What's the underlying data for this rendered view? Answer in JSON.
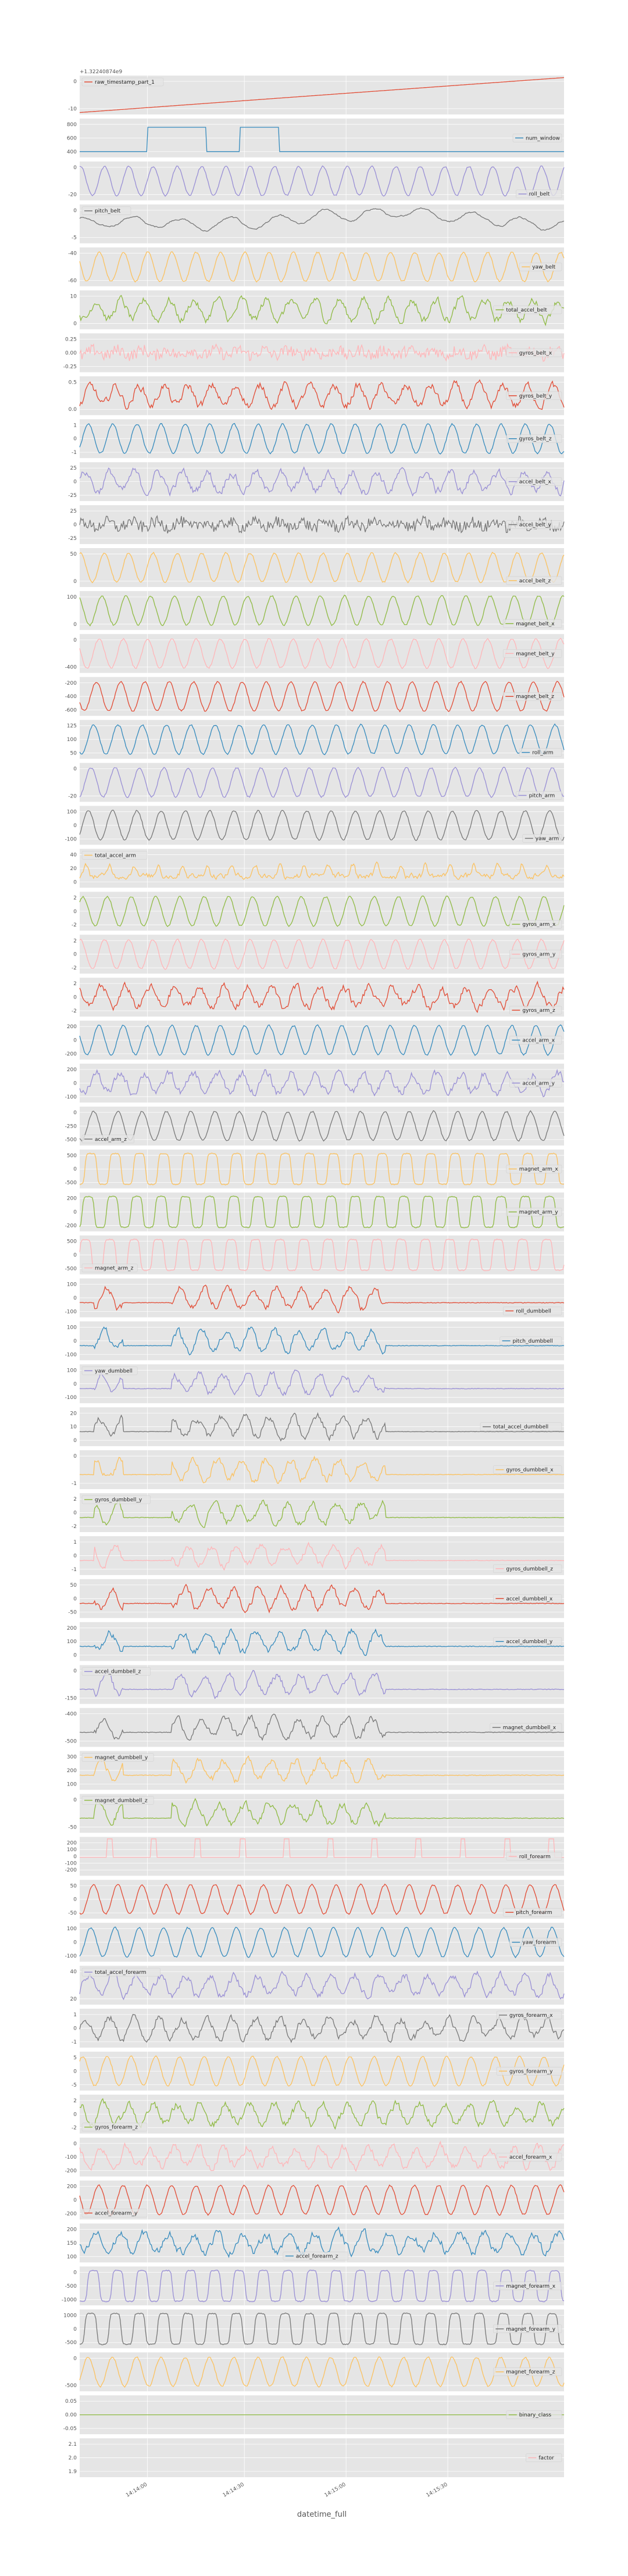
{
  "chart_data": {
    "type": "line",
    "xlabel": "datetime_full",
    "x_ticks": [
      "14:14:00",
      "14:14:30",
      "14:15:00",
      "14:15:30"
    ],
    "grid": true,
    "legend_placement": "per-panel",
    "colors": [
      "#E24A33",
      "#348ABD",
      "#988ED5",
      "#777777",
      "#FBC15E",
      "#8EBA42",
      "#FFB5B8"
    ],
    "panels": [
      {
        "name": "raw_timestamp_part_1",
        "offset_text": "+1.32240874e9",
        "yticks": [
          "0",
          "-10"
        ],
        "kind": "ramp",
        "legend_pos": "upper-left",
        "color": "#E24A33"
      },
      {
        "name": "num_window",
        "yticks": [
          "800",
          "600",
          "400"
        ],
        "kind": "step",
        "legend_pos": "right",
        "color": "#348ABD"
      },
      {
        "name": "roll_belt",
        "yticks": [
          "0",
          "-20"
        ],
        "kind": "wave",
        "period": 20,
        "legend_pos": "lower-right",
        "color": "#988ED5"
      },
      {
        "name": "pitch_belt",
        "yticks": [
          "0",
          "-5"
        ],
        "kind": "drift",
        "legend_pos": "upper-left",
        "color": "#777777"
      },
      {
        "name": "yaw_belt",
        "yticks": [
          "-40",
          "-60"
        ],
        "kind": "wave",
        "period": 20,
        "legend_pos": "right",
        "color": "#FBC15E"
      },
      {
        "name": "total_accel_belt",
        "yticks": [
          "10",
          "0"
        ],
        "kind": "noisy",
        "legend_pos": "right",
        "color": "#8EBA42"
      },
      {
        "name": "gyros_belt_x",
        "yticks": [
          "0.25",
          "0.00",
          "-0.25"
        ],
        "kind": "noise",
        "legend_pos": "right",
        "color": "#FFB5B8"
      },
      {
        "name": "gyros_belt_y",
        "yticks": [
          "0.5",
          "0.0"
        ],
        "kind": "noisy",
        "legend_pos": "right",
        "color": "#E24A33"
      },
      {
        "name": "gyros_belt_z",
        "yticks": [
          "1",
          "0",
          "-1"
        ],
        "kind": "wave",
        "period": 20,
        "legend_pos": "right",
        "color": "#348ABD"
      },
      {
        "name": "accel_belt_x",
        "yticks": [
          "25",
          "0",
          "-25"
        ],
        "kind": "noisy",
        "legend_pos": "right",
        "color": "#988ED5"
      },
      {
        "name": "accel_belt_y",
        "yticks": [
          "25",
          "0",
          "-25"
        ],
        "kind": "noise",
        "legend_pos": "right",
        "color": "#777777"
      },
      {
        "name": "accel_belt_z",
        "yticks": [
          "50",
          "0"
        ],
        "kind": "wave",
        "period": 20,
        "legend_pos": "lower-right",
        "color": "#FBC15E"
      },
      {
        "name": "magnet_belt_x",
        "yticks": [
          "100",
          "0"
        ],
        "kind": "wave",
        "period": 20,
        "legend_pos": "lower-right",
        "color": "#8EBA42"
      },
      {
        "name": "magnet_belt_y",
        "yticks": [
          "0",
          "-400"
        ],
        "kind": "wave",
        "period": 20,
        "legend_pos": "right",
        "color": "#FFB5B8"
      },
      {
        "name": "magnet_belt_z",
        "yticks": [
          "-200",
          "-400",
          "-600"
        ],
        "kind": "wave",
        "period": 20,
        "legend_pos": "right",
        "color": "#E24A33"
      },
      {
        "name": "roll_arm",
        "yticks": [
          "125",
          "100",
          "50"
        ],
        "kind": "wave",
        "period": 20,
        "legend_pos": "lower-right",
        "color": "#348ABD"
      },
      {
        "name": "pitch_arm",
        "yticks": [
          "0",
          "-20"
        ],
        "kind": "wave",
        "period": 20,
        "legend_pos": "lower-right",
        "color": "#988ED5"
      },
      {
        "name": "yaw_arm",
        "yticks": [
          "100",
          "0",
          "-100"
        ],
        "kind": "wave",
        "period": 20,
        "legend_pos": "lower-right",
        "color": "#777777"
      },
      {
        "name": "total_accel_arm",
        "yticks": [
          "40",
          "20",
          "0"
        ],
        "kind": "spiky",
        "legend_pos": "upper-left",
        "color": "#FBC15E"
      },
      {
        "name": "gyros_arm_x",
        "yticks": [
          "2",
          "0",
          "-2"
        ],
        "kind": "wave",
        "period": 20,
        "legend_pos": "lower-right",
        "color": "#8EBA42"
      },
      {
        "name": "gyros_arm_y",
        "yticks": [
          "2",
          "0",
          "-2"
        ],
        "kind": "wave",
        "period": 20,
        "legend_pos": "right",
        "color": "#FFB5B8"
      },
      {
        "name": "gyros_arm_z",
        "yticks": [
          "2",
          "0",
          "-2"
        ],
        "kind": "noisy",
        "legend_pos": "lower-right",
        "color": "#E24A33"
      },
      {
        "name": "accel_arm_x",
        "yticks": [
          "200",
          "0",
          "-200"
        ],
        "kind": "wave",
        "period": 20,
        "legend_pos": "right",
        "color": "#348ABD"
      },
      {
        "name": "accel_arm_y",
        "yticks": [
          "200",
          "0",
          "-100"
        ],
        "kind": "noisy",
        "legend_pos": "right",
        "color": "#988ED5"
      },
      {
        "name": "accel_arm_z",
        "yticks": [
          "0",
          "-250",
          "-500"
        ],
        "kind": "wave",
        "period": 20,
        "legend_pos": "lower-left",
        "color": "#777777"
      },
      {
        "name": "magnet_arm_x",
        "yticks": [
          "500",
          "0",
          "-500"
        ],
        "kind": "square",
        "period": 20,
        "legend_pos": "right",
        "color": "#FBC15E"
      },
      {
        "name": "magnet_arm_y",
        "yticks": [
          "200",
          "0",
          "-200"
        ],
        "kind": "square",
        "period": 20,
        "legend_pos": "right",
        "color": "#8EBA42"
      },
      {
        "name": "magnet_arm_z",
        "yticks": [
          "500",
          "0",
          "-500"
        ],
        "kind": "square",
        "period": 20,
        "legend_pos": "lower-left",
        "color": "#FFB5B8"
      },
      {
        "name": "roll_dumbbell",
        "yticks": [
          "100",
          "0",
          "-100"
        ],
        "kind": "dumb",
        "legend_pos": "lower-right",
        "color": "#E24A33"
      },
      {
        "name": "pitch_dumbbell",
        "yticks": [
          "100",
          "0",
          "-100"
        ],
        "kind": "dumb",
        "legend_pos": "right",
        "color": "#348ABD"
      },
      {
        "name": "yaw_dumbbell",
        "yticks": [
          "100",
          "0",
          "-100"
        ],
        "kind": "dumb",
        "legend_pos": "upper-left",
        "color": "#988ED5"
      },
      {
        "name": "total_accel_dumbbell",
        "yticks": [
          "20",
          "10",
          "0"
        ],
        "kind": "dumb",
        "legend_pos": "right",
        "color": "#777777"
      },
      {
        "name": "gyros_dumbbell_x",
        "yticks": [
          "0",
          "-1"
        ],
        "kind": "dumb",
        "legend_pos": "right",
        "color": "#FBC15E"
      },
      {
        "name": "gyros_dumbbell_y",
        "yticks": [
          "2",
          "0",
          "-2"
        ],
        "kind": "dumb",
        "legend_pos": "upper-left",
        "color": "#8EBA42"
      },
      {
        "name": "gyros_dumbbell_z",
        "yticks": [
          "1",
          "0",
          "-1"
        ],
        "kind": "dumb",
        "legend_pos": "lower-right",
        "color": "#FFB5B8"
      },
      {
        "name": "accel_dumbbell_x",
        "yticks": [
          "50",
          "0",
          "-50"
        ],
        "kind": "dumb",
        "legend_pos": "right",
        "color": "#E24A33"
      },
      {
        "name": "accel_dumbbell_y",
        "yticks": [
          "200",
          "100",
          "0"
        ],
        "kind": "dumb",
        "legend_pos": "right",
        "color": "#348ABD"
      },
      {
        "name": "accel_dumbbell_z",
        "yticks": [
          "0",
          "-150"
        ],
        "kind": "dumb",
        "legend_pos": "upper-left",
        "color": "#988ED5"
      },
      {
        "name": "magnet_dumbbell_x",
        "yticks": [
          "-400",
          "-500"
        ],
        "kind": "dumb",
        "legend_pos": "right",
        "color": "#777777"
      },
      {
        "name": "magnet_dumbbell_y",
        "yticks": [
          "300",
          "200",
          "100"
        ],
        "kind": "dumb",
        "legend_pos": "upper-left",
        "color": "#FBC15E"
      },
      {
        "name": "magnet_dumbbell_z",
        "yticks": [
          "0",
          "-50"
        ],
        "kind": "dumb",
        "legend_pos": "upper-left",
        "color": "#8EBA42"
      },
      {
        "name": "roll_forearm",
        "yticks": [
          "200",
          "100",
          "0",
          "-100",
          "-200"
        ],
        "kind": "pulse",
        "legend_pos": "right",
        "color": "#FFB5B8"
      },
      {
        "name": "pitch_forearm",
        "yticks": [
          "50",
          "0",
          "-50"
        ],
        "kind": "wave",
        "period": 20,
        "legend_pos": "lower-right",
        "color": "#E24A33"
      },
      {
        "name": "yaw_forearm",
        "yticks": [
          "100",
          "0",
          "-100"
        ],
        "kind": "wave",
        "period": 20,
        "legend_pos": "right",
        "color": "#348ABD"
      },
      {
        "name": "total_accel_forearm",
        "yticks": [
          "40",
          "20"
        ],
        "kind": "noisy",
        "legend_pos": "upper-left",
        "color": "#988ED5"
      },
      {
        "name": "gyros_forearm_x",
        "yticks": [
          "1",
          "0",
          "-1"
        ],
        "kind": "noisy",
        "legend_pos": "upper-right",
        "color": "#777777"
      },
      {
        "name": "gyros_forearm_y",
        "yticks": [
          "5",
          "0",
          "-5"
        ],
        "kind": "wave",
        "period": 20,
        "legend_pos": "right",
        "color": "#FBC15E"
      },
      {
        "name": "gyros_forearm_z",
        "yticks": [
          "2",
          "0",
          "-2"
        ],
        "kind": "noisy",
        "legend_pos": "lower-left",
        "color": "#8EBA42"
      },
      {
        "name": "accel_forearm_x",
        "yticks": [
          "0",
          "-100",
          "-200"
        ],
        "kind": "noisy",
        "legend_pos": "right",
        "color": "#FFB5B8"
      },
      {
        "name": "accel_forearm_y",
        "yticks": [
          "200",
          "0",
          "-200"
        ],
        "kind": "wave",
        "period": 20,
        "legend_pos": "lower-left",
        "color": "#E24A33"
      },
      {
        "name": "accel_forearm_z",
        "yticks": [
          "200",
          "150",
          "100"
        ],
        "kind": "noisy",
        "legend_pos": "lower-center",
        "color": "#348ABD"
      },
      {
        "name": "magnet_forearm_x",
        "yticks": [
          "0",
          "-500",
          "-1000"
        ],
        "kind": "square",
        "period": 20,
        "legend_pos": "right",
        "color": "#988ED5"
      },
      {
        "name": "magnet_forearm_y",
        "yticks": [
          "1000",
          "0",
          "-500"
        ],
        "kind": "square",
        "period": 20,
        "legend_pos": "right",
        "color": "#777777"
      },
      {
        "name": "magnet_forearm_z",
        "yticks": [
          "0",
          "-500"
        ],
        "kind": "wave",
        "period": 20,
        "legend_pos": "right",
        "color": "#FBC15E"
      },
      {
        "name": "binary_class",
        "yticks": [
          "0.05",
          "0.00",
          "-0.05"
        ],
        "kind": "flat",
        "legend_pos": "right",
        "color": "#8EBA42"
      },
      {
        "name": "factor",
        "yticks": [
          "2.1",
          "2.0",
          "1.9"
        ],
        "kind": "empty",
        "legend_pos": "right",
        "color": "#FFB5B8"
      }
    ]
  }
}
